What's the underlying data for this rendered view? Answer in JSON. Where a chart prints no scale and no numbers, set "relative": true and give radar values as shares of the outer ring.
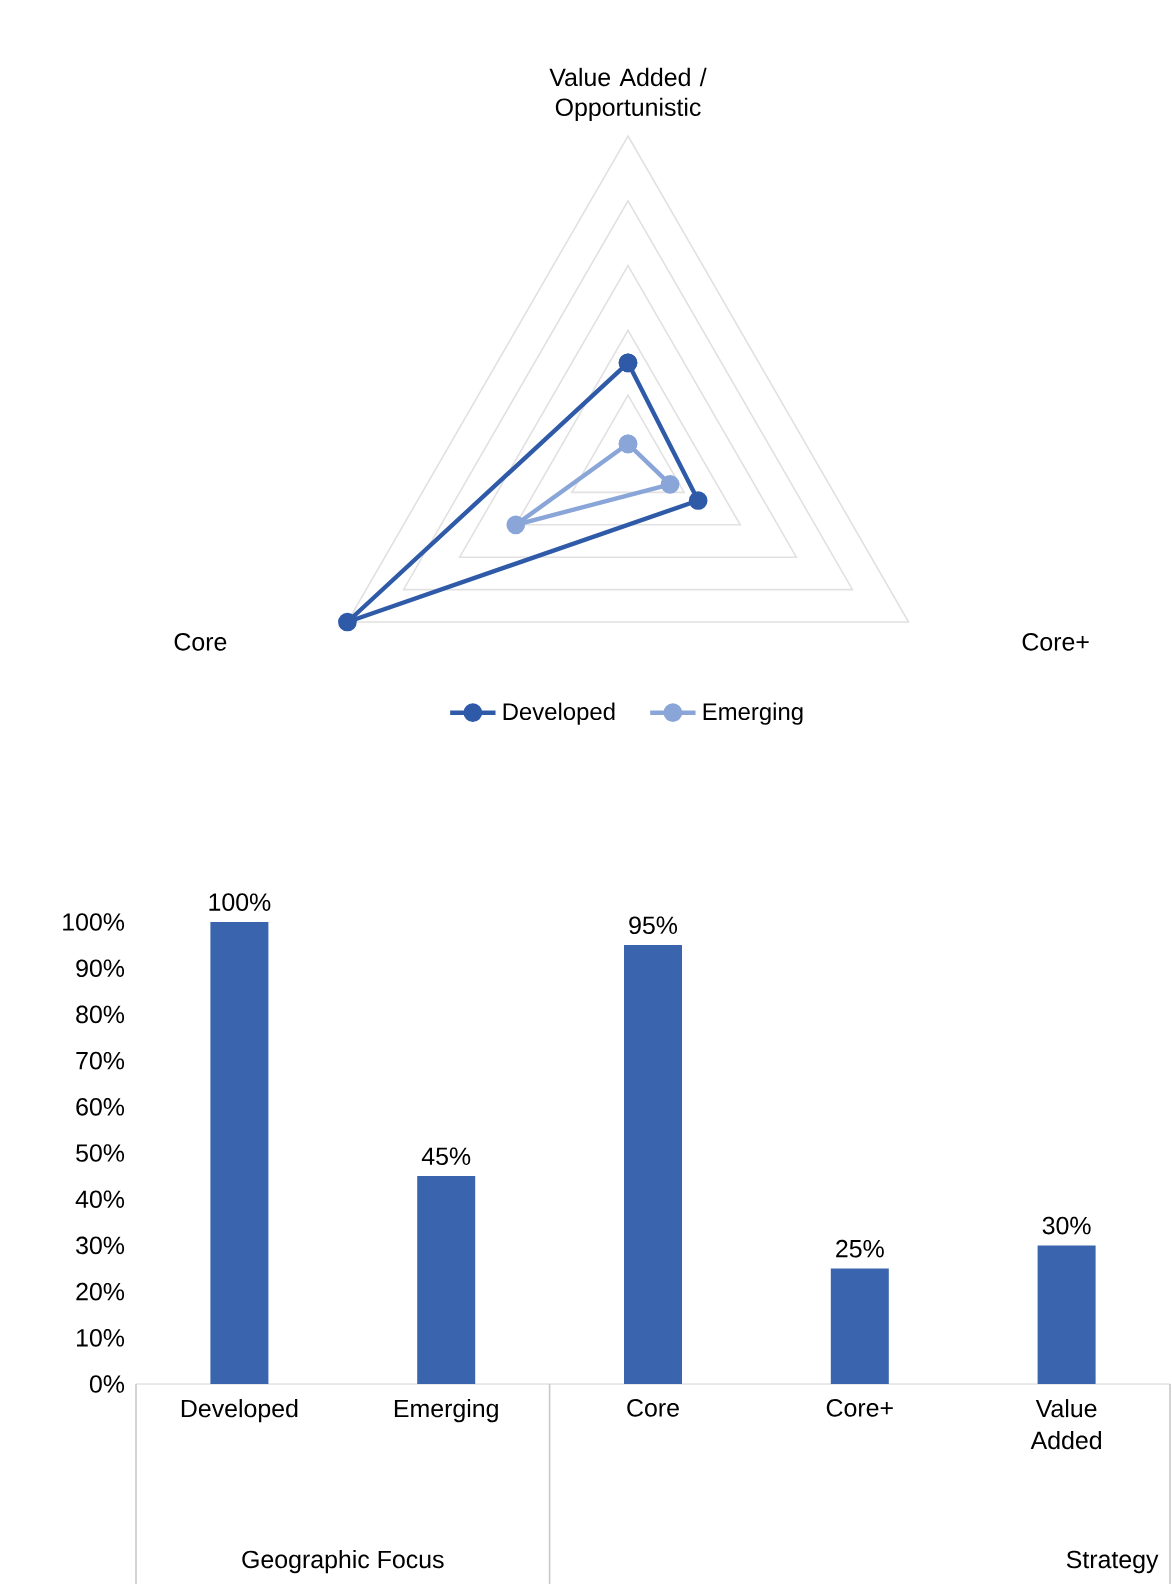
{
  "chart_data": [
    {
      "type": "radar",
      "categories": [
        "Value Added / Opportunistic",
        "Core+",
        "Core"
      ],
      "relative": true,
      "grid": true,
      "legend": "bottom",
      "marker": "circle",
      "line_style": "solid",
      "series": [
        {
          "name": "Developed",
          "color": "#2f5aa8",
          "values": [
            0.3,
            0.25,
            1.0
          ]
        },
        {
          "name": "Emerging",
          "color": "#8aa5d8",
          "values": [
            0.05,
            0.15,
            0.4
          ]
        }
      ]
    },
    {
      "type": "bar",
      "categories": [
        "Developed",
        "Emerging",
        "Core",
        "Core+",
        "Value Added"
      ],
      "values": [
        100,
        45,
        95,
        25,
        30
      ],
      "color": "#3a64ad",
      "value_labels": [
        "100%",
        "45%",
        "95%",
        "25%",
        "30%"
      ],
      "ylim": [
        0,
        100
      ],
      "yticks": [
        {
          "value": 0,
          "label": "0%"
        },
        {
          "value": 10,
          "label": "10%"
        },
        {
          "value": 20,
          "label": "20%"
        },
        {
          "value": 30,
          "label": "30%"
        },
        {
          "value": 40,
          "label": "40%"
        },
        {
          "value": 50,
          "label": "50%"
        },
        {
          "value": 60,
          "label": "60%"
        },
        {
          "value": 70,
          "label": "70%"
        },
        {
          "value": 80,
          "label": "80%"
        },
        {
          "value": 90,
          "label": "90%"
        },
        {
          "value": 100,
          "label": "100%"
        }
      ],
      "annotations": [
        "Geographic Focus",
        "Strategy"
      ]
    }
  ]
}
